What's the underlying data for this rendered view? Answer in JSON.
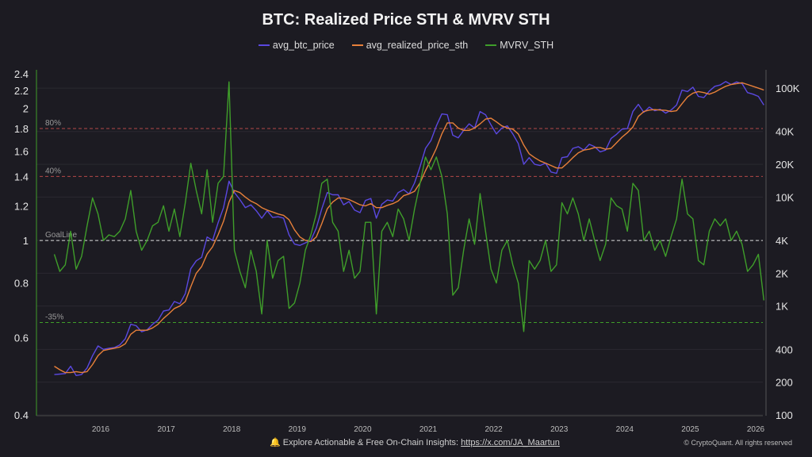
{
  "chart_data": {
    "type": "line",
    "title": "BTC: Realized Price STH & MVRV STH",
    "legend_position": "top-center",
    "colors": {
      "avg_btc_price": "#5a48e0",
      "avg_realized_price_sth": "#e8803a",
      "MVRV_STH": "#3f9e2a",
      "background": "#1c1b22"
    },
    "left_axis": {
      "series": "MVRV_STH",
      "scale": "log",
      "range": [
        0.4,
        2.4
      ],
      "ticks": [
        "0.4",
        "0.6",
        "0.8",
        "1",
        "1.2",
        "1.4",
        "1.6",
        "1.8",
        "2",
        "2.2",
        "2.4"
      ]
    },
    "right_axis": {
      "series": [
        "avg_btc_price",
        "avg_realized_price_sth"
      ],
      "scale": "log",
      "range": [
        100,
        150000
      ],
      "ticks": [
        "100",
        "200",
        "400",
        "1K",
        "2K",
        "4K",
        "10K",
        "20K",
        "40K",
        "100K"
      ],
      "tick_values": [
        100,
        200,
        400,
        1000,
        2000,
        4000,
        10000,
        20000,
        40000,
        100000
      ]
    },
    "x_axis": {
      "ticks": [
        "2016",
        "2017",
        "2018",
        "2019",
        "2020",
        "2021",
        "2022",
        "2023",
        "2024",
        "2025",
        "2026"
      ]
    },
    "reference_lines": [
      {
        "label": "80%",
        "value": 1.8,
        "color": "#b34848"
      },
      {
        "label": "40%",
        "value": 1.4,
        "color": "#b34848"
      },
      {
        "label": "GoalLine",
        "value": 1.0,
        "color": "#dddddd"
      },
      {
        "label": "-35%",
        "value": 0.65,
        "color": "#3f9e2a"
      }
    ],
    "x": [
      "2015-04",
      "2015-05",
      "2015-06",
      "2015-07",
      "2015-08",
      "2015-09",
      "2015-10",
      "2015-11",
      "2015-12",
      "2016-01",
      "2016-02",
      "2016-03",
      "2016-04",
      "2016-05",
      "2016-06",
      "2016-07",
      "2016-08",
      "2016-09",
      "2016-10",
      "2016-11",
      "2016-12",
      "2017-01",
      "2017-02",
      "2017-03",
      "2017-04",
      "2017-05",
      "2017-06",
      "2017-07",
      "2017-08",
      "2017-09",
      "2017-10",
      "2017-11",
      "2017-12",
      "2018-01",
      "2018-02",
      "2018-03",
      "2018-04",
      "2018-05",
      "2018-06",
      "2018-07",
      "2018-08",
      "2018-09",
      "2018-10",
      "2018-11",
      "2018-12",
      "2019-01",
      "2019-02",
      "2019-03",
      "2019-04",
      "2019-05",
      "2019-06",
      "2019-07",
      "2019-08",
      "2019-09",
      "2019-10",
      "2019-11",
      "2019-12",
      "2020-01",
      "2020-02",
      "2020-03",
      "2020-04",
      "2020-05",
      "2020-06",
      "2020-07",
      "2020-08",
      "2020-09",
      "2020-10",
      "2020-11",
      "2020-12",
      "2021-01",
      "2021-02",
      "2021-03",
      "2021-04",
      "2021-05",
      "2021-06",
      "2021-07",
      "2021-08",
      "2021-09",
      "2021-10",
      "2021-11",
      "2021-12",
      "2022-01",
      "2022-02",
      "2022-03",
      "2022-04",
      "2022-05",
      "2022-06",
      "2022-07",
      "2022-08",
      "2022-09",
      "2022-10",
      "2022-11",
      "2022-12",
      "2023-01",
      "2023-02",
      "2023-03",
      "2023-04",
      "2023-05",
      "2023-06",
      "2023-07",
      "2023-08",
      "2023-09",
      "2023-10",
      "2023-11",
      "2023-12",
      "2024-01",
      "2024-02",
      "2024-03",
      "2024-04",
      "2024-05",
      "2024-06",
      "2024-07",
      "2024-08",
      "2024-09",
      "2024-10",
      "2024-11",
      "2024-12",
      "2025-01",
      "2025-02",
      "2025-03",
      "2025-04",
      "2025-05",
      "2025-06",
      "2025-07",
      "2025-08",
      "2025-09",
      "2025-10",
      "2025-11",
      "2025-12",
      "2026-01",
      "2026-02"
    ],
    "series": [
      {
        "name": "avg_btc_price",
        "axis": "right",
        "values": [
          235,
          237,
          240,
          280,
          230,
          235,
          270,
          350,
          430,
          400,
          410,
          415,
          440,
          500,
          680,
          660,
          580,
          605,
          680,
          740,
          900,
          920,
          1100,
          1050,
          1300,
          2200,
          2600,
          2800,
          4300,
          4000,
          5800,
          8000,
          14000,
          11000,
          9500,
          8000,
          8500,
          7500,
          6400,
          7500,
          6500,
          6600,
          6400,
          4500,
          3700,
          3600,
          3800,
          4000,
          5200,
          7800,
          11000,
          10500,
          10500,
          8500,
          9100,
          7600,
          7200,
          9300,
          9700,
          6400,
          8600,
          9400,
          9200,
          11000,
          11700,
          10700,
          13500,
          19000,
          28000,
          33000,
          45000,
          58000,
          57000,
          37000,
          35000,
          41000,
          47000,
          43000,
          61000,
          57000,
          46000,
          38000,
          43000,
          45000,
          38000,
          31000,
          20000,
          23000,
          20000,
          19500,
          20500,
          17000,
          16500,
          23000,
          23500,
          28000,
          29000,
          27000,
          30500,
          29000,
          26000,
          27000,
          34500,
          37700,
          42000,
          42500,
          61000,
          71000,
          60000,
          67000,
          62000,
          64000,
          59000,
          63000,
          70000,
          96000,
          93000,
          102000,
          84000,
          82000,
          94000,
          104000,
          107000,
          115000,
          108000,
          114000,
          110000,
          91000,
          88000,
          84000,
          70000
        ]
      },
      {
        "name": "avg_realized_price_sth",
        "axis": "right",
        "values": [
          280,
          260,
          245,
          245,
          250,
          245,
          250,
          290,
          350,
          390,
          400,
          410,
          420,
          450,
          550,
          600,
          600,
          600,
          630,
          680,
          770,
          850,
          950,
          1000,
          1100,
          1500,
          2000,
          2300,
          3000,
          3500,
          4500,
          6000,
          9000,
          11500,
          11000,
          10000,
          9200,
          8700,
          8000,
          7600,
          7300,
          7000,
          6800,
          6200,
          5000,
          4300,
          4000,
          3900,
          4300,
          5700,
          7800,
          9000,
          9800,
          9800,
          9500,
          9000,
          8500,
          8300,
          8700,
          8000,
          8000,
          8400,
          8700,
          9200,
          10300,
          10700,
          11300,
          13500,
          17500,
          22000,
          28000,
          38000,
          48000,
          48000,
          43000,
          41000,
          41000,
          43000,
          47000,
          52000,
          53000,
          49000,
          45000,
          43000,
          42000,
          38000,
          30000,
          25000,
          23000,
          21500,
          20500,
          19500,
          18500,
          18500,
          20500,
          23000,
          25500,
          27000,
          27500,
          28500,
          28500,
          27500,
          28000,
          31500,
          35500,
          39000,
          44000,
          55000,
          61000,
          63000,
          63500,
          63000,
          62500,
          61000,
          62000,
          72000,
          83000,
          90000,
          93000,
          91000,
          88000,
          92000,
          98000,
          104000,
          108000,
          110000,
          112000,
          108000,
          104000,
          100000,
          96000
        ]
      },
      {
        "name": "MVRV_STH",
        "axis": "left",
        "values": [
          0.93,
          0.85,
          0.88,
          1.05,
          0.86,
          0.92,
          1.08,
          1.25,
          1.15,
          1.0,
          1.03,
          1.02,
          1.05,
          1.12,
          1.3,
          1.05,
          0.95,
          1.0,
          1.08,
          1.1,
          1.2,
          1.05,
          1.18,
          1.02,
          1.22,
          1.5,
          1.3,
          1.15,
          1.45,
          1.1,
          1.35,
          1.4,
          2.3,
          0.95,
          0.85,
          0.78,
          0.95,
          0.85,
          0.68,
          1.0,
          0.82,
          0.9,
          0.92,
          0.7,
          0.72,
          0.8,
          0.95,
          1.03,
          1.15,
          1.35,
          1.38,
          1.1,
          1.05,
          0.85,
          0.95,
          0.82,
          0.85,
          1.1,
          1.1,
          0.68,
          1.05,
          1.1,
          1.02,
          1.18,
          1.12,
          1.0,
          1.18,
          1.35,
          1.55,
          1.45,
          1.55,
          1.4,
          1.15,
          0.75,
          0.78,
          0.95,
          1.12,
          0.98,
          1.28,
          1.05,
          0.86,
          0.8,
          0.95,
          1.0,
          0.88,
          0.8,
          0.62,
          0.9,
          0.86,
          0.9,
          1.0,
          0.85,
          0.88,
          1.22,
          1.15,
          1.25,
          1.15,
          1.0,
          1.12,
          1.0,
          0.9,
          0.98,
          1.25,
          1.2,
          1.18,
          1.05,
          1.35,
          1.3,
          1.0,
          1.05,
          0.95,
          1.0,
          0.92,
          1.02,
          1.12,
          1.38,
          1.15,
          1.12,
          0.9,
          0.88,
          1.05,
          1.12,
          1.08,
          1.12,
          1.0,
          1.05,
          0.98,
          0.85,
          0.88,
          0.93,
          0.73
        ]
      }
    ]
  },
  "footer": {
    "text": "Explore Actionable & Free On-Chain Insights: ",
    "link": "https://x.com/JA_Maartun",
    "copyright": "© CryptoQuant. All rights reserved",
    "bell_icon": "bell-icon"
  }
}
